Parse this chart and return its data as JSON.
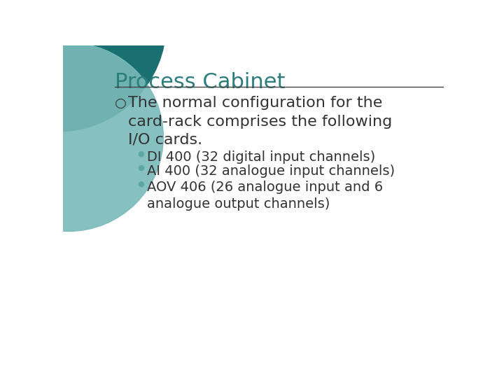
{
  "title": "Process Cabinet",
  "title_color": "#2E7D7D",
  "title_fontsize": 22,
  "bg_color": "#FFFFFF",
  "divider_color": "#444444",
  "bullet1_symbol": "○",
  "bullet1_color": "#333333",
  "bullet1_text_line1": "The normal configuration for the",
  "bullet1_text_line2": "card-rack comprises the following",
  "bullet1_text_line3": "I/O cards.",
  "bullet1_fontsize": 16,
  "sub_bullet_color": "#5BA8A0",
  "sub_bullet_symbol": "●",
  "sub_bullets": [
    "DI 400 (32 digital input channels)",
    "AI 400 (32 analogue input channels)",
    "AOV 406 (26 analogue input and 6\nanalogue output channels)"
  ],
  "sub_bullet_fontsize": 14,
  "decoration_circle1_color": "#1A7070",
  "decoration_circle2_color": "#7ABABA"
}
